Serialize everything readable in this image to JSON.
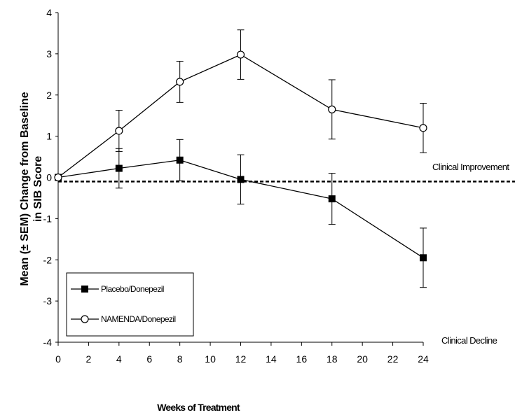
{
  "chart_data": {
    "type": "line",
    "xlabel": "Weeks of Treatment",
    "ylabel_line1": "Mean (± SEM) Change from Baseline",
    "ylabel_line2": "in SIB Score",
    "xlim": [
      0,
      24
    ],
    "ylim": [
      -4,
      4
    ],
    "x_ticks": [
      0,
      2,
      4,
      6,
      8,
      10,
      12,
      14,
      16,
      18,
      20,
      22,
      24
    ],
    "y_ticks": [
      -4,
      -3,
      -2,
      -1,
      0,
      1,
      2,
      3,
      4
    ],
    "reference_line": {
      "y": -0.1,
      "style": "dashed"
    },
    "annotations": {
      "improvement": "Clinical Improvement",
      "decline": "Clinical Decline"
    },
    "legend_position": "bottom-left",
    "series": [
      {
        "name": "Placebo/Donepezil",
        "marker": "filled-square",
        "points": [
          {
            "x": 0,
            "y": 0.0,
            "err": 0.0
          },
          {
            "x": 4,
            "y": 0.22,
            "err": 0.48
          },
          {
            "x": 8,
            "y": 0.42,
            "err": 0.5
          },
          {
            "x": 12,
            "y": -0.05,
            "err": 0.6
          },
          {
            "x": 18,
            "y": -0.52,
            "err": 0.62
          },
          {
            "x": 24,
            "y": -1.95,
            "err": 0.72
          }
        ]
      },
      {
        "name": "NAMENDA/Donepezil",
        "marker": "open-circle",
        "points": [
          {
            "x": 0,
            "y": 0.0,
            "err": 0.0
          },
          {
            "x": 4,
            "y": 1.13,
            "err": 0.5
          },
          {
            "x": 8,
            "y": 2.32,
            "err": 0.5
          },
          {
            "x": 12,
            "y": 2.98,
            "err": 0.6
          },
          {
            "x": 18,
            "y": 1.65,
            "err": 0.72
          },
          {
            "x": 24,
            "y": 1.2,
            "err": 0.6
          }
        ]
      }
    ]
  }
}
